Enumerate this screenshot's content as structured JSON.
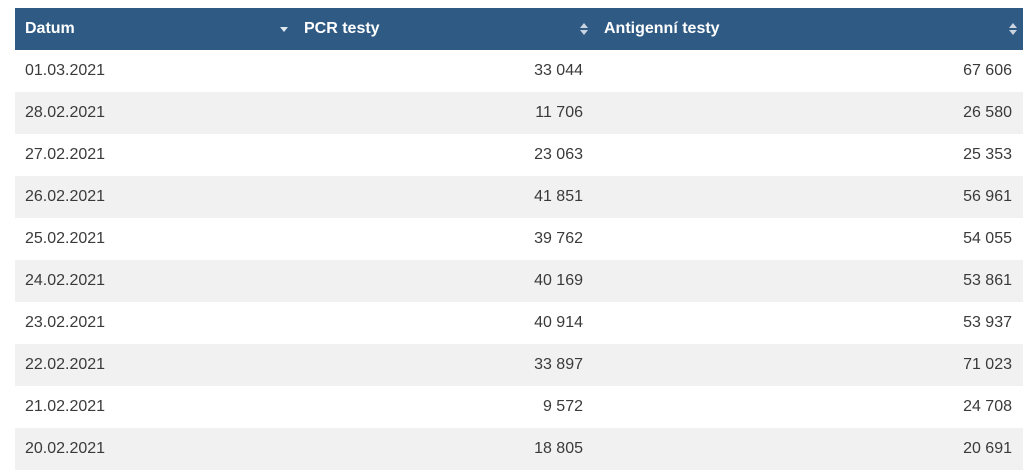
{
  "table": {
    "headers": {
      "date": "Datum",
      "pcr": "PCR testy",
      "antigen": "Antigenní testy"
    },
    "sort": {
      "date": "descending",
      "pcr": "none",
      "antigen": "none"
    },
    "rows": [
      {
        "date": "01.03.2021",
        "pcr": "33 044",
        "antigen": "67 606"
      },
      {
        "date": "28.02.2021",
        "pcr": "11 706",
        "antigen": "26 580"
      },
      {
        "date": "27.02.2021",
        "pcr": "23 063",
        "antigen": "25 353"
      },
      {
        "date": "26.02.2021",
        "pcr": "41 851",
        "antigen": "56 961"
      },
      {
        "date": "25.02.2021",
        "pcr": "39 762",
        "antigen": "54 055"
      },
      {
        "date": "24.02.2021",
        "pcr": "40 169",
        "antigen": "53 861"
      },
      {
        "date": "23.02.2021",
        "pcr": "40 914",
        "antigen": "53 937"
      },
      {
        "date": "22.02.2021",
        "pcr": "33 897",
        "antigen": "71 023"
      },
      {
        "date": "21.02.2021",
        "pcr": "9 572",
        "antigen": "24 708"
      },
      {
        "date": "20.02.2021",
        "pcr": "18 805",
        "antigen": "20 691"
      }
    ]
  },
  "colors": {
    "header_bg": "#2f5a84",
    "header_text": "#ffffff",
    "row_alt_bg": "#f1f1f1",
    "text": "#3a3a3a"
  },
  "icons": {
    "date_sort": "sort-desc-icon",
    "pcr_sort": "sort-both-icon",
    "antigen_sort": "sort-both-icon"
  }
}
